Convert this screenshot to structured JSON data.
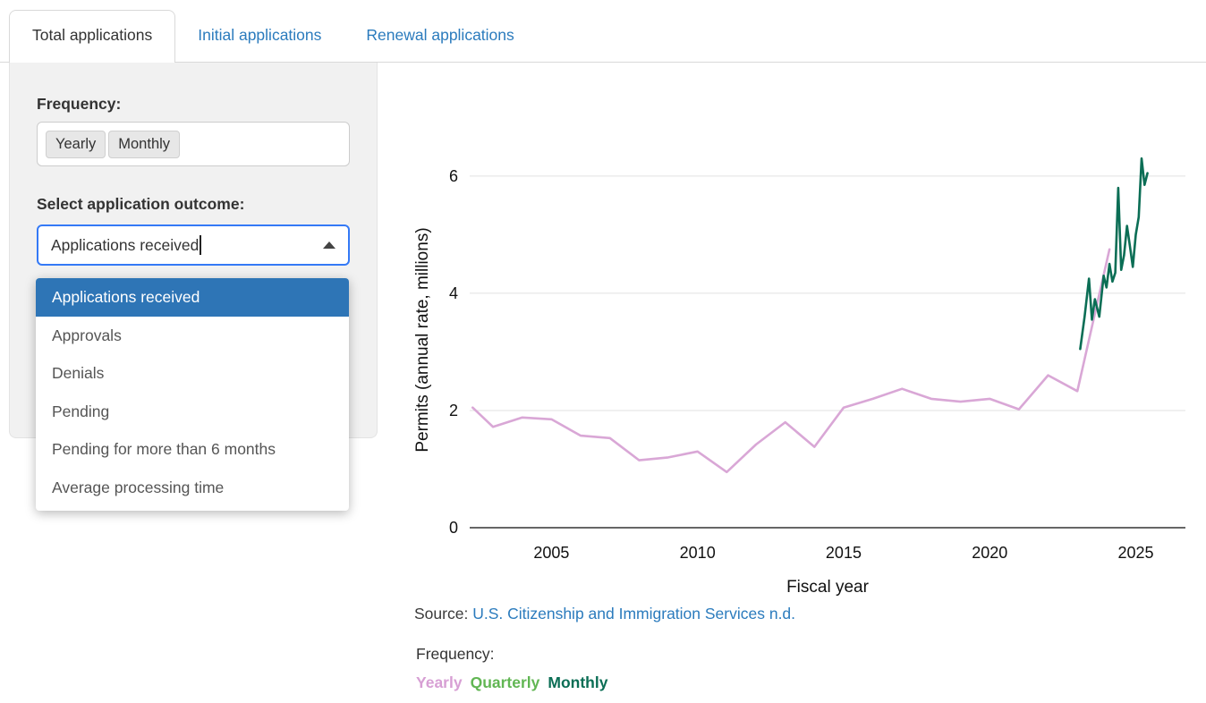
{
  "tabs": [
    {
      "label": "Total applications",
      "active": true
    },
    {
      "label": "Initial applications",
      "active": false
    },
    {
      "label": "Renewal applications",
      "active": false
    }
  ],
  "controls": {
    "frequency_label": "Frequency:",
    "frequency_options": [
      "Yearly",
      "Monthly"
    ],
    "outcome_label": "Select application outcome:",
    "combobox_value": "Applications received",
    "dropdown_options": [
      "Applications received",
      "Approvals",
      "Denials",
      "Pending",
      "Pending for more than 6 months",
      "Average processing time"
    ],
    "selected_option": "Applications received"
  },
  "chart_data": {
    "type": "line",
    "title": "",
    "xlabel": "Fiscal year",
    "ylabel": "Permits (annual rate, millions)",
    "xlim": [
      2002.2,
      2026.7
    ],
    "ylim": [
      0,
      6.41
    ],
    "xticks": [
      2005,
      2010,
      2015,
      2020,
      2025
    ],
    "yticks": [
      0,
      2,
      4,
      6
    ],
    "grid": "horizontal",
    "legend_position": "below",
    "series": [
      {
        "name": "Yearly",
        "color": "#d9a7d6",
        "x": [
          2002.3,
          2003,
          2004,
          2005,
          2006,
          2007,
          2008,
          2009,
          2010,
          2011,
          2012,
          2013,
          2014,
          2015,
          2016,
          2017,
          2018,
          2019,
          2020,
          2021,
          2022,
          2023,
          2024.1
        ],
        "values": [
          2.05,
          1.72,
          1.88,
          1.85,
          1.57,
          1.53,
          1.15,
          1.2,
          1.3,
          0.95,
          1.42,
          1.8,
          1.38,
          2.05,
          2.2,
          2.37,
          2.2,
          2.15,
          2.2,
          2.02,
          2.6,
          2.33,
          4.75
        ]
      },
      {
        "name": "Monthly",
        "color": "#0b6e55",
        "x": [
          2023.1,
          2023.25,
          2023.4,
          2023.5,
          2023.6,
          2023.75,
          2023.9,
          2024.0,
          2024.1,
          2024.2,
          2024.3,
          2024.4,
          2024.5,
          2024.6,
          2024.7,
          2024.8,
          2024.9,
          2025.0,
          2025.1,
          2025.2,
          2025.3,
          2025.4
        ],
        "values": [
          3.05,
          3.6,
          4.25,
          3.55,
          3.9,
          3.6,
          4.3,
          4.1,
          4.5,
          4.2,
          4.35,
          5.8,
          4.4,
          4.65,
          5.15,
          4.8,
          4.45,
          5.0,
          5.3,
          6.3,
          5.85,
          6.05
        ]
      }
    ]
  },
  "footer": {
    "source_prefix": "Source: ",
    "source_link": "U.S. Citizenship and Immigration Services n.d.",
    "legend_title": "Frequency:",
    "legend": [
      {
        "label": "Yearly",
        "color": "#d79fd4"
      },
      {
        "label": "Quarterly",
        "color": "#61b653"
      },
      {
        "label": "Monthly",
        "color": "#0b6e55"
      }
    ]
  },
  "colors": {
    "tab_link": "#2b7bbd",
    "dropdown_selected_bg": "#2e75b6",
    "combobox_focus_border": "#3479f6"
  }
}
